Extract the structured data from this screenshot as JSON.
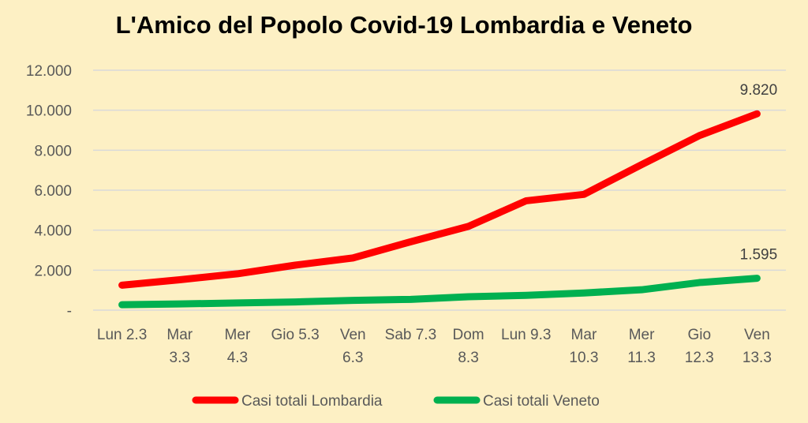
{
  "chart_data": {
    "type": "line",
    "title": "L'Amico del Popolo Covid-19 Lombardia e Veneto",
    "categories": [
      [
        "Lun 2.3"
      ],
      [
        "Mar",
        "3.3"
      ],
      [
        "Mer",
        "4.3"
      ],
      [
        "Gio 5.3"
      ],
      [
        "Ven",
        "6.3"
      ],
      [
        "Sab 7.3"
      ],
      [
        "Dom",
        "8.3"
      ],
      [
        "Lun 9.3"
      ],
      [
        "Mar",
        "10.3"
      ],
      [
        "Mer",
        "11.3"
      ],
      [
        "Gio",
        "12.3"
      ],
      [
        "Ven",
        "13.3"
      ]
    ],
    "yticks": [
      "-",
      "2.000",
      "4.000",
      "6.000",
      "8.000",
      "10.000",
      "12.000"
    ],
    "ylim": [
      0,
      12000
    ],
    "grid": true,
    "legend_position": "bottom",
    "series": [
      {
        "name": "Casi totali Lombardia",
        "color": "#ff0000",
        "values": [
          1250,
          1520,
          1820,
          2250,
          2610,
          3420,
          4190,
          5470,
          5790,
          7280,
          8730,
          9820
        ],
        "end_label": "9.820"
      },
      {
        "name": "Casi totali Veneto",
        "color": "#00b050",
        "values": [
          270,
          310,
          360,
          410,
          490,
          540,
          670,
          740,
          860,
          1020,
          1380,
          1595
        ],
        "end_label": "1.595"
      }
    ]
  }
}
